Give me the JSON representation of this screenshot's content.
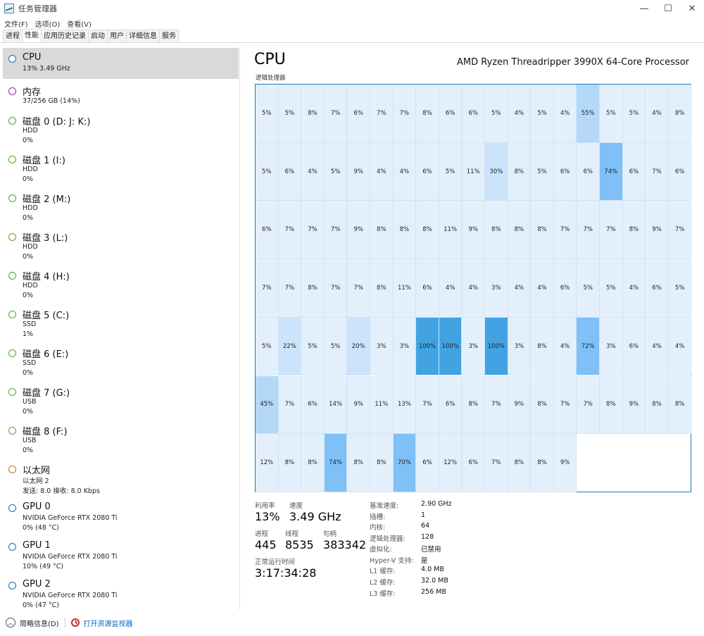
{
  "window": {
    "title": "任务管理器",
    "controls": {
      "minimize": "—",
      "maximize": "☐",
      "close": "✕"
    }
  },
  "menu": [
    "文件(F)",
    "选项(O)",
    "查看(V)"
  ],
  "tabs": [
    {
      "label": "进程",
      "active": false
    },
    {
      "label": "性能",
      "active": true
    },
    {
      "label": "应用历史记录",
      "active": false
    },
    {
      "label": "启动",
      "active": false
    },
    {
      "label": "用户",
      "active": false
    },
    {
      "label": "详细信息",
      "active": false
    },
    {
      "label": "服务",
      "active": false
    }
  ],
  "sidebar": [
    {
      "title": "CPU",
      "line1": "13% 3.49 GHz",
      "line2": "",
      "color": "#0a6fb7",
      "selected": true
    },
    {
      "title": "内存",
      "line1": "37/256 GB (14%)",
      "line2": "",
      "color": "#9b1fb0",
      "selected": false
    },
    {
      "title": "磁盘 0 (D: J: K:)",
      "line1": "HDD",
      "line2": "0%",
      "color": "#4da72a",
      "selected": false
    },
    {
      "title": "磁盘 1 (I:)",
      "line1": "HDD",
      "line2": "0%",
      "color": "#4da72a",
      "selected": false
    },
    {
      "title": "磁盘 2 (M:)",
      "line1": "HDD",
      "line2": "0%",
      "color": "#4da72a",
      "selected": false
    },
    {
      "title": "磁盘 3 (L:)",
      "line1": "HDD",
      "line2": "0%",
      "color": "#4da72a",
      "selected": false
    },
    {
      "title": "磁盘 4 (H:)",
      "line1": "HDD",
      "line2": "0%",
      "color": "#4da72a",
      "selected": false
    },
    {
      "title": "磁盘 5 (C:)",
      "line1": "SSD",
      "line2": "1%",
      "color": "#4da72a",
      "selected": false
    },
    {
      "title": "磁盘 6 (E:)",
      "line1": "SSD",
      "line2": "0%",
      "color": "#4da72a",
      "selected": false
    },
    {
      "title": "磁盘 7 (G:)",
      "line1": "USB",
      "line2": "0%",
      "color": "#4da72a",
      "selected": false
    },
    {
      "title": "磁盘 8 (F:)",
      "line1": "USB",
      "line2": "0%",
      "color": "#4da72a",
      "selected": false
    },
    {
      "title": "以太网",
      "line1": "以太网 2",
      "line2": "发送: 8.0  接收: 8.0 Kbps",
      "color": "#c86d1c",
      "selected": false
    },
    {
      "title": "GPU 0",
      "line1": "NVIDIA GeForce RTX 2080 Ti",
      "line2": "0% (48 °C)",
      "color": "#0a6fb7",
      "selected": false
    },
    {
      "title": "GPU 1",
      "line1": "NVIDIA GeForce RTX 2080 Ti",
      "line2": "10% (49 °C)",
      "color": "#0a6fb7",
      "selected": false
    },
    {
      "title": "GPU 2",
      "line1": "NVIDIA GeForce RTX 2080 Ti",
      "line2": "0% (47 °C)",
      "color": "#0a6fb7",
      "selected": false
    }
  ],
  "main": {
    "title": "CPU",
    "processor": "AMD Ryzen Threadripper 3990X 64-Core Processor",
    "grid_label": "逻辑处理器",
    "cores": [
      5,
      5,
      8,
      7,
      6,
      7,
      7,
      8,
      6,
      6,
      5,
      4,
      5,
      4,
      55,
      5,
      5,
      4,
      8,
      5,
      6,
      4,
      5,
      9,
      4,
      4,
      6,
      5,
      11,
      30,
      8,
      5,
      6,
      6,
      74,
      6,
      7,
      6,
      6,
      7,
      7,
      7,
      9,
      8,
      8,
      8,
      11,
      9,
      8,
      8,
      8,
      7,
      7,
      7,
      8,
      9,
      7,
      7,
      7,
      8,
      7,
      7,
      8,
      11,
      6,
      4,
      4,
      3,
      4,
      4,
      6,
      5,
      5,
      4,
      6,
      5,
      5,
      22,
      5,
      5,
      20,
      3,
      3,
      100,
      100,
      3,
      100,
      3,
      8,
      4,
      72,
      3,
      6,
      4,
      4,
      45,
      7,
      6,
      14,
      9,
      11,
      13,
      7,
      6,
      8,
      7,
      9,
      8,
      7,
      7,
      8,
      9,
      8,
      8,
      12,
      8,
      8,
      74,
      8,
      8,
      70,
      6,
      12,
      6,
      7,
      8,
      8,
      9
    ],
    "stats": {
      "utilization_label": "利用率",
      "utilization": "13%",
      "speed_label": "速度",
      "speed": "3.49 GHz",
      "processes_label": "进程",
      "processes": "445",
      "threads_label": "线程",
      "threads": "8535",
      "handles_label": "句柄",
      "handles": "383342",
      "uptime_label": "正常运行时间",
      "uptime": "3:17:34:28"
    },
    "details": [
      {
        "label": "基准速度:",
        "value": "2.90 GHz"
      },
      {
        "label": "插槽:",
        "value": "1"
      },
      {
        "label": "内核:",
        "value": "64"
      },
      {
        "label": "逻辑处理器:",
        "value": "128"
      },
      {
        "label": "虚拟化:",
        "value": "已禁用"
      },
      {
        "label": "Hyper-V 支持:",
        "value": "是"
      },
      {
        "label": "L1 缓存:",
        "value": "4.0 MB"
      },
      {
        "label": "L2 缓存:",
        "value": "32.0 MB"
      },
      {
        "label": "L3 缓存:",
        "value": "256 MB"
      }
    ]
  },
  "footer": {
    "fewer_details": "简略信息(D)",
    "resource_monitor": "打开资源监视器"
  }
}
